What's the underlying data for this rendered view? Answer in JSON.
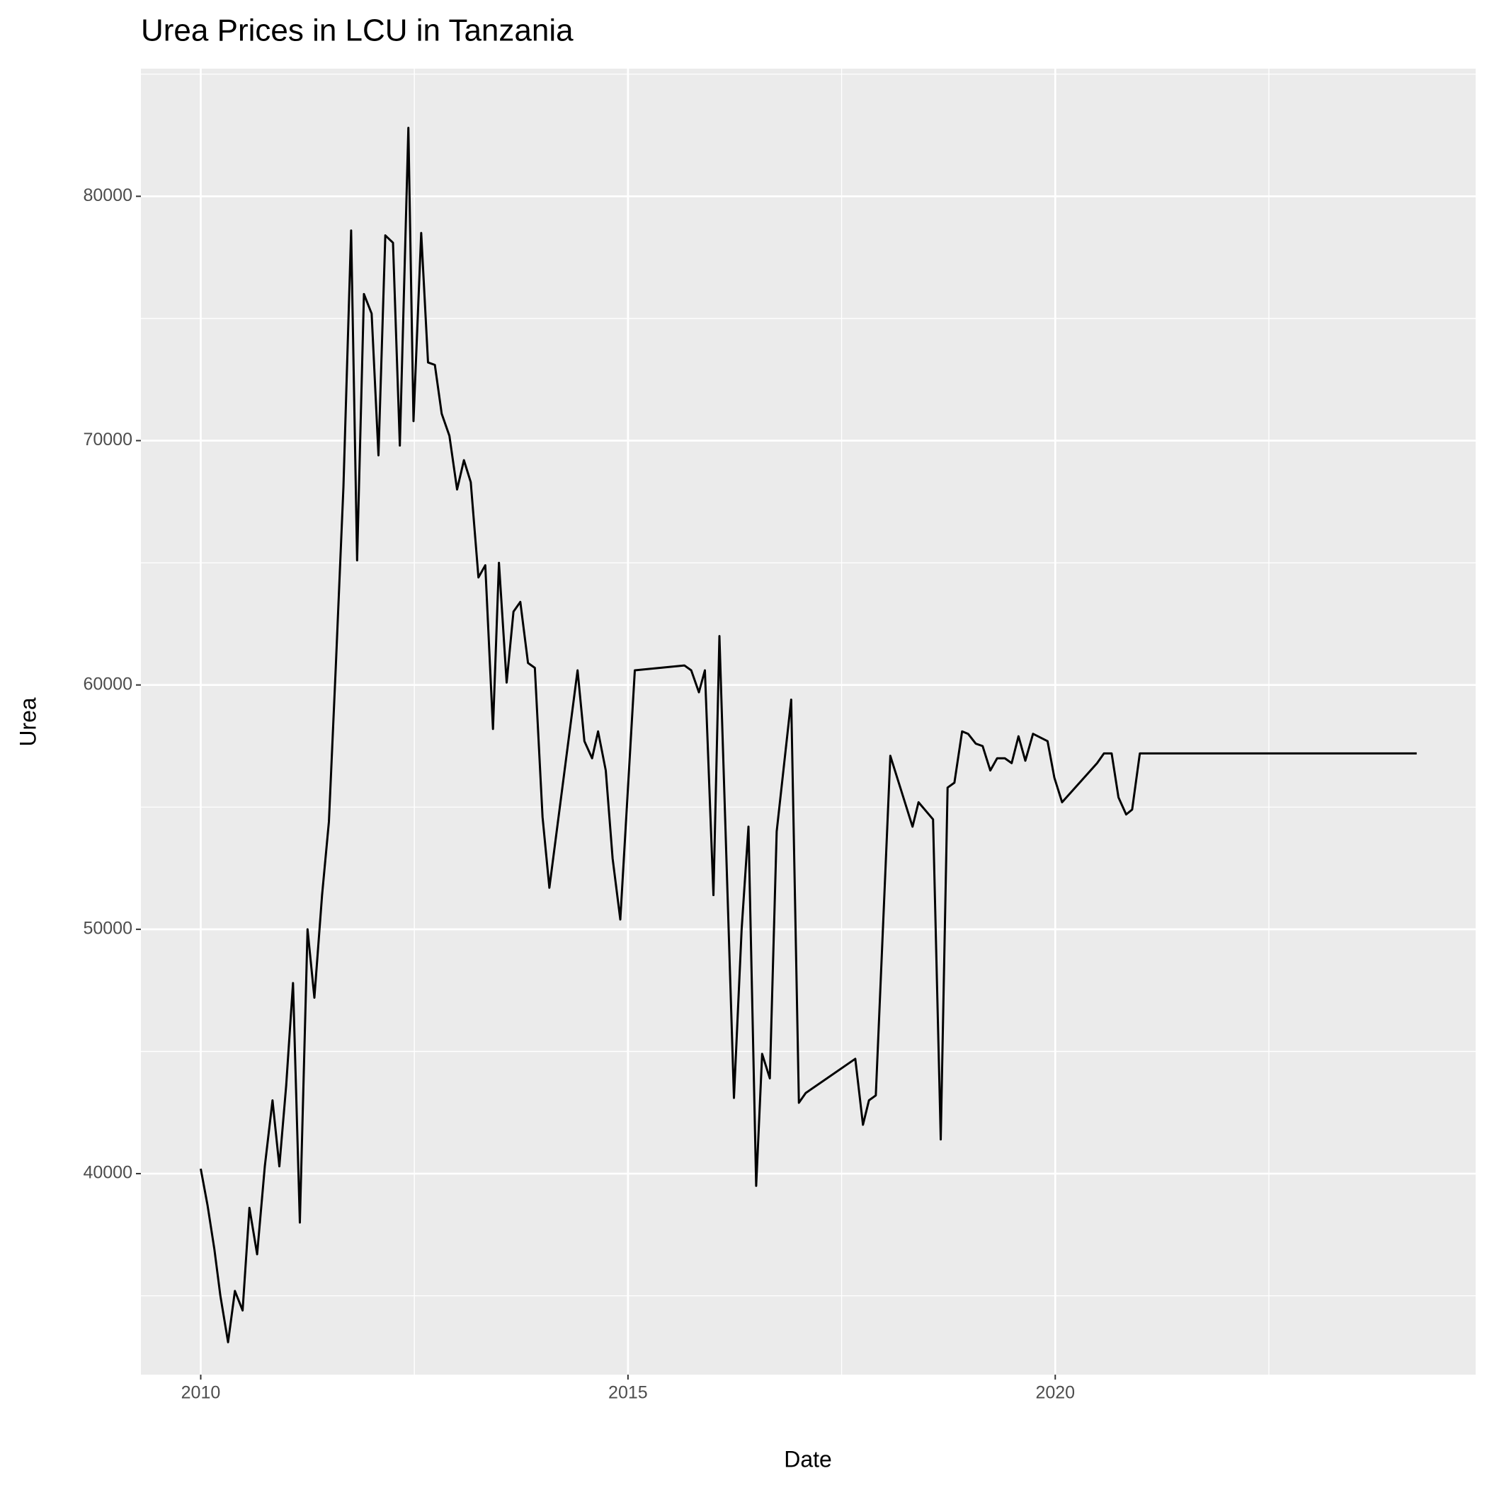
{
  "chart_data": {
    "type": "line",
    "title": "Urea Prices in LCU in Tanzania",
    "x_label": "Date",
    "y_label": "Urea",
    "series": [
      {
        "name": "Urea",
        "color": "#000000",
        "x": [
          2010.0,
          2010.08,
          2010.16,
          2010.23,
          2010.32,
          2010.4,
          2010.49,
          2010.57,
          2010.66,
          2010.75,
          2010.84,
          2010.92,
          2011.0,
          2011.08,
          2011.16,
          2011.25,
          2011.33,
          2011.42,
          2011.5,
          2011.58,
          2011.67,
          2011.76,
          2011.83,
          2011.91,
          2012.0,
          2012.08,
          2012.16,
          2012.25,
          2012.33,
          2012.43,
          2012.49,
          2012.58,
          2012.66,
          2012.74,
          2012.82,
          2012.91,
          2013.0,
          2013.08,
          2013.16,
          2013.25,
          2013.33,
          2013.42,
          2013.49,
          2013.58,
          2013.66,
          2013.74,
          2013.83,
          2013.91,
          2014.0,
          2014.08,
          2014.41,
          2014.49,
          2014.58,
          2014.65,
          2014.74,
          2014.82,
          2014.91,
          2015.08,
          2015.66,
          2015.74,
          2015.83,
          2015.9,
          2016.0,
          2016.07,
          2016.24,
          2016.33,
          2016.41,
          2016.5,
          2016.57,
          2016.66,
          2016.74,
          2016.91,
          2017.0,
          2017.08,
          2017.66,
          2017.75,
          2017.82,
          2017.9,
          2018.07,
          2018.33,
          2018.4,
          2018.57,
          2018.66,
          2018.74,
          2018.82,
          2018.91,
          2018.98,
          2019.07,
          2019.15,
          2019.24,
          2019.32,
          2019.41,
          2019.49,
          2019.57,
          2019.65,
          2019.74,
          2019.91,
          2019.99,
          2020.08,
          2020.49,
          2020.57,
          2020.66,
          2020.74,
          2020.83,
          2020.9,
          2020.99,
          2024.23
        ],
        "values": [
          40200,
          38700,
          36900,
          35000,
          33100,
          35200,
          34400,
          38600,
          36700,
          40300,
          43000,
          40300,
          43600,
          47800,
          38000,
          50000,
          47200,
          51400,
          54400,
          60700,
          68100,
          78600,
          65100,
          76000,
          75200,
          69400,
          78400,
          78100,
          69800,
          82800,
          70800,
          78500,
          73200,
          73100,
          71100,
          70200,
          68000,
          69200,
          68300,
          64400,
          64900,
          58200,
          65000,
          60100,
          63000,
          63400,
          60900,
          60700,
          54600,
          51700,
          60600,
          57700,
          57000,
          58100,
          56500,
          52900,
          50400,
          60600,
          60800,
          60600,
          59700,
          60600,
          51400,
          62000,
          43100,
          50000,
          54200,
          39500,
          44900,
          43900,
          54000,
          59400,
          42900,
          43300,
          44700,
          42000,
          43000,
          43200,
          57100,
          54200,
          55200,
          54500,
          41400,
          55800,
          56000,
          58100,
          58000,
          57600,
          57500,
          56500,
          57000,
          57000,
          56800,
          57900,
          56900,
          58000,
          57700,
          56200,
          55200,
          56800,
          57200,
          57200,
          55400,
          54700,
          54900,
          57200,
          57200
        ]
      }
    ],
    "xlim": [
      2009.3,
      2024.92
    ],
    "ylim": [
      31774,
      85224
    ],
    "xticks": [
      2010,
      2015,
      2020
    ],
    "yticks": [
      40000,
      50000,
      60000,
      70000,
      80000
    ],
    "grid": true
  }
}
